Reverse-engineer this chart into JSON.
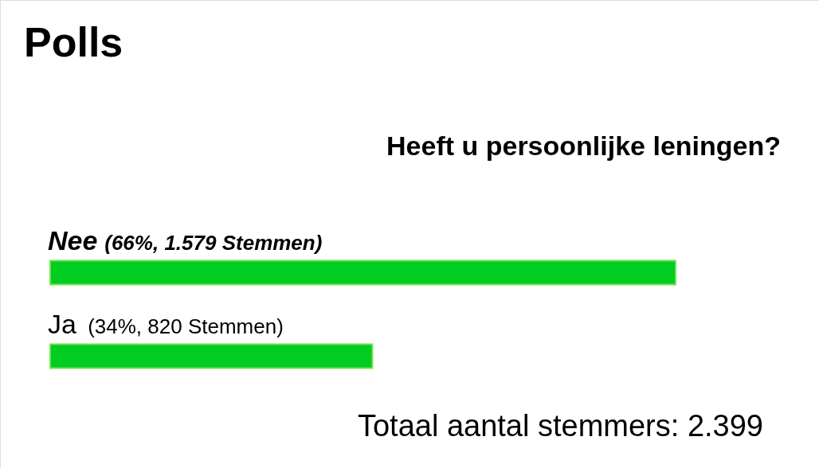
{
  "chart_data": {
    "type": "bar",
    "orientation": "horizontal",
    "title": "Polls",
    "subtitle": "Heeft u persoonlijke leningen?",
    "categories": [
      "Nee",
      "Ja"
    ],
    "values": [
      66,
      34
    ],
    "value_labels": [
      "(66%, 1.579 Stemmen)",
      "(34%, 820 Stemmen)"
    ],
    "color": "#00cc22",
    "annotations": [
      "Totaal aantal stemmers: 2.399"
    ]
  }
}
